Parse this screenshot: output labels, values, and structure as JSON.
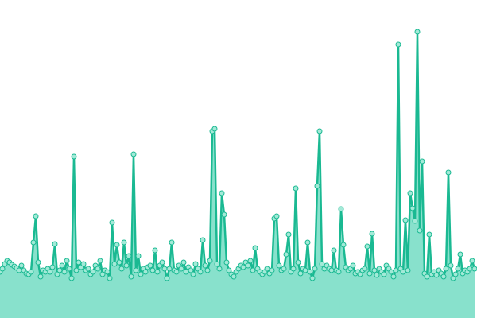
{
  "chart_data": {
    "type": "area",
    "color": "#1ab992",
    "fill": "#88e1cc",
    "marker_fill": "#a3ead8",
    "values": [
      58,
      62,
      68,
      72,
      70,
      67,
      65,
      63,
      60,
      66,
      60,
      56,
      55,
      58,
      95,
      128,
      70,
      52,
      60,
      58,
      62,
      58,
      64,
      93,
      55,
      60,
      66,
      58,
      72,
      62,
      50,
      203,
      60,
      70,
      64,
      68,
      60,
      62,
      55,
      58,
      66,
      62,
      72,
      55,
      60,
      58,
      50,
      120,
      68,
      92,
      70,
      62,
      95,
      66,
      78,
      52,
      206,
      60,
      78,
      55,
      62,
      58,
      64,
      66,
      60,
      85,
      58,
      66,
      70,
      62,
      50,
      62,
      95,
      60,
      58,
      66,
      62,
      70,
      58,
      64,
      60,
      55,
      68,
      62,
      58,
      98,
      66,
      60,
      72,
      235,
      238,
      68,
      62,
      157,
      130,
      70,
      60,
      55,
      52,
      58,
      62,
      66,
      64,
      70,
      66,
      72,
      60,
      88,
      62,
      58,
      55,
      58,
      62,
      56,
      60,
      125,
      128,
      66,
      60,
      62,
      80,
      105,
      58,
      62,
      163,
      70,
      56,
      62,
      60,
      95,
      58,
      50,
      62,
      166,
      235,
      68,
      62,
      66,
      62,
      60,
      85,
      60,
      58,
      137,
      92,
      64,
      60,
      62,
      66,
      56,
      58,
      55,
      60,
      62,
      90,
      56,
      106,
      60,
      54,
      62,
      58,
      55,
      66,
      62,
      58,
      52,
      60,
      344,
      62,
      58,
      123,
      60,
      157,
      138,
      122,
      360,
      110,
      197,
      56,
      52,
      105,
      55,
      58,
      54,
      60,
      56,
      52,
      62,
      183,
      66,
      50,
      55,
      62,
      80,
      56,
      60,
      58,
      62,
      72,
      62
    ]
  }
}
